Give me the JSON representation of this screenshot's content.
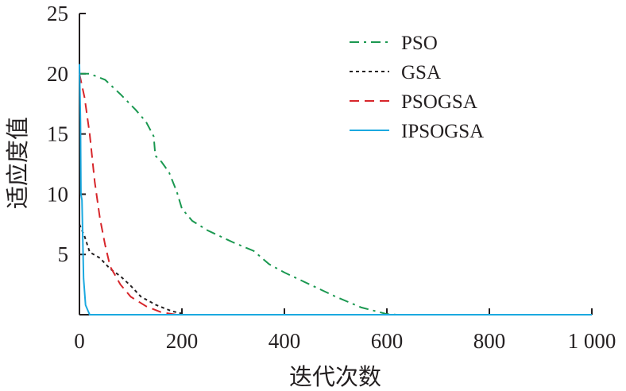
{
  "chart_data": {
    "type": "line",
    "title": "",
    "xlabel": "迭代次数",
    "ylabel": "适应度值",
    "xlim": [
      0,
      1000
    ],
    "ylim": [
      0,
      25
    ],
    "xticks": [
      0,
      200,
      400,
      600,
      800,
      1000
    ],
    "xtick_labels": [
      "0",
      "200",
      "400",
      "600",
      "800",
      "1 000"
    ],
    "yticks": [
      5,
      10,
      15,
      20,
      25
    ],
    "ytick_labels": [
      "5",
      "10",
      "15",
      "20",
      "25"
    ],
    "grid": false,
    "legend_position": "top-right",
    "series": [
      {
        "name": "PSO",
        "color": "#1a9850",
        "dash": "12,6,3,6",
        "x": [
          0,
          20,
          50,
          80,
          110,
          130,
          145,
          148,
          160,
          175,
          190,
          200,
          220,
          250,
          300,
          340,
          370,
          400,
          450,
          500,
          550,
          600,
          620,
          1000
        ],
        "y": [
          20,
          20,
          19.5,
          18.3,
          17,
          16,
          14.8,
          13.2,
          12.7,
          11.8,
          10.2,
          8.8,
          7.8,
          7,
          6,
          5.3,
          4.2,
          3.5,
          2.5,
          1.5,
          0.6,
          0.05,
          0,
          0
        ]
      },
      {
        "name": "GSA",
        "color": "#231f20",
        "dash": "4,4",
        "x": [
          0,
          10,
          20,
          40,
          60,
          80,
          100,
          120,
          150,
          180,
          200
        ],
        "y": [
          7.5,
          6.5,
          5.2,
          4.7,
          3.8,
          3.2,
          2.4,
          1.5,
          0.8,
          0.3,
          0.1
        ]
      },
      {
        "name": "PSOGSA",
        "color": "#d7262b",
        "dash": "12,7",
        "x": [
          0,
          10,
          20,
          30,
          40,
          50,
          60,
          80,
          100,
          130,
          160,
          190
        ],
        "y": [
          20,
          18,
          15,
          11,
          8,
          5.8,
          4,
          2.5,
          1.5,
          0.7,
          0.2,
          0
        ]
      },
      {
        "name": "IPSOGSA",
        "color": "#1ba9e0",
        "dash": "",
        "x": [
          0,
          2,
          3,
          5,
          8,
          12,
          20,
          1000
        ],
        "y": [
          20.8,
          16,
          10,
          9.5,
          3,
          0.8,
          0,
          0
        ]
      }
    ]
  }
}
